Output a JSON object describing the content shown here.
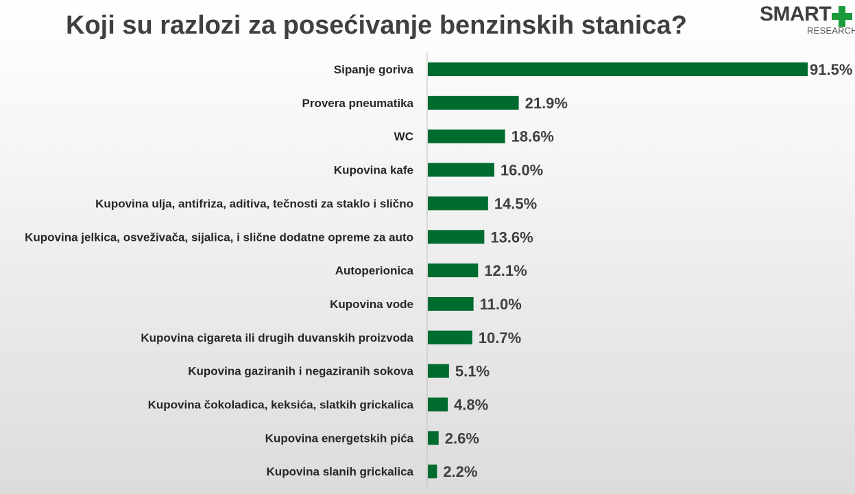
{
  "title": "Koji su razlozi za posećivanje benzinskih stanica?",
  "logo": {
    "main": "SMART",
    "sub": "RESEARCH",
    "plus_color": "#1a9a3a"
  },
  "bar_color": "#006b2e",
  "chart_data": {
    "type": "bar",
    "orientation": "horizontal",
    "title": "Koji su razlozi za posećivanje benzinskih stanica?",
    "unit": "%",
    "xlim": [
      0,
      91.5
    ],
    "categories": [
      "Sipanje goriva",
      "Provera pneumatika",
      "WC",
      "Kupovina kafe",
      "Kupovina ulja, antifriza, aditiva, tečnosti za staklo i slično",
      "Kupovina jelkica, osveživača, sijalica, i slične dodatne opreme za auto",
      "Autoperionica",
      "Kupovina vode",
      "Kupovina cigareta ili drugih duvanskih proizvoda",
      "Kupovina gaziranih i negaziranih sokova",
      "Kupovina čokoladica, keksića, slatkih grickalica",
      "Kupovina energetskih pića",
      "Kupovina slanih grickalica"
    ],
    "values": [
      91.5,
      21.9,
      18.6,
      16.0,
      14.5,
      13.6,
      12.1,
      11.0,
      10.7,
      5.1,
      4.8,
      2.6,
      2.2
    ],
    "value_labels": [
      "91.5%",
      "21.9%",
      "18.6%",
      "16.0%",
      "14.5%",
      "13.6%",
      "12.1%",
      "11.0%",
      "10.7%",
      "5.1%",
      "4.8%",
      "2.6%",
      "2.2%"
    ]
  }
}
